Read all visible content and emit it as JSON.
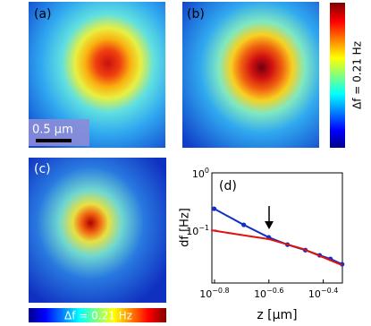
{
  "panels": {
    "a": {
      "label": "(a)",
      "scale_bar": "0.5 µm"
    },
    "b": {
      "label": "(b)"
    },
    "c": {
      "label": "(c)"
    },
    "colorbar_vertical": "Δf = 0.21 Hz",
    "colorbar_horizontal": "Δf = 0.21 Hz"
  },
  "chart_data": {
    "type": "line",
    "panel_label": "(d)",
    "x_label": "z [µm]",
    "y_label": "df [Hz]",
    "log_x": true,
    "log_y": true,
    "xlim": [
      0.155,
      0.468
    ],
    "ylim": [
      0.012,
      1
    ],
    "xticks": [
      {
        "value": 0.1585,
        "label": "10",
        "exponent": "−0.8"
      },
      {
        "value": 0.2512,
        "label": "10",
        "exponent": "−0.6"
      },
      {
        "value": 0.3981,
        "label": "10",
        "exponent": "−0.4"
      }
    ],
    "yticks": [
      {
        "value": 0.1,
        "label": "10",
        "exponent": "−1"
      },
      {
        "value": 1,
        "label": "10",
        "exponent": "0"
      }
    ],
    "series": [
      {
        "color": "#1030c8",
        "markers": true,
        "x": [
          0.158,
          0.203,
          0.251,
          0.294,
          0.342,
          0.386,
          0.423,
          0.467
        ],
        "values": [
          0.237,
          0.124,
          0.075,
          0.056,
          0.045,
          0.0365,
          0.0316,
          0.0255
        ]
      },
      {
        "color": "#e01010",
        "markers": false,
        "x": [
          0.154,
          0.197,
          0.251,
          0.336,
          0.467
        ],
        "values": [
          0.1,
          0.0834,
          0.07,
          0.047,
          0.0246
        ]
      }
    ]
  }
}
